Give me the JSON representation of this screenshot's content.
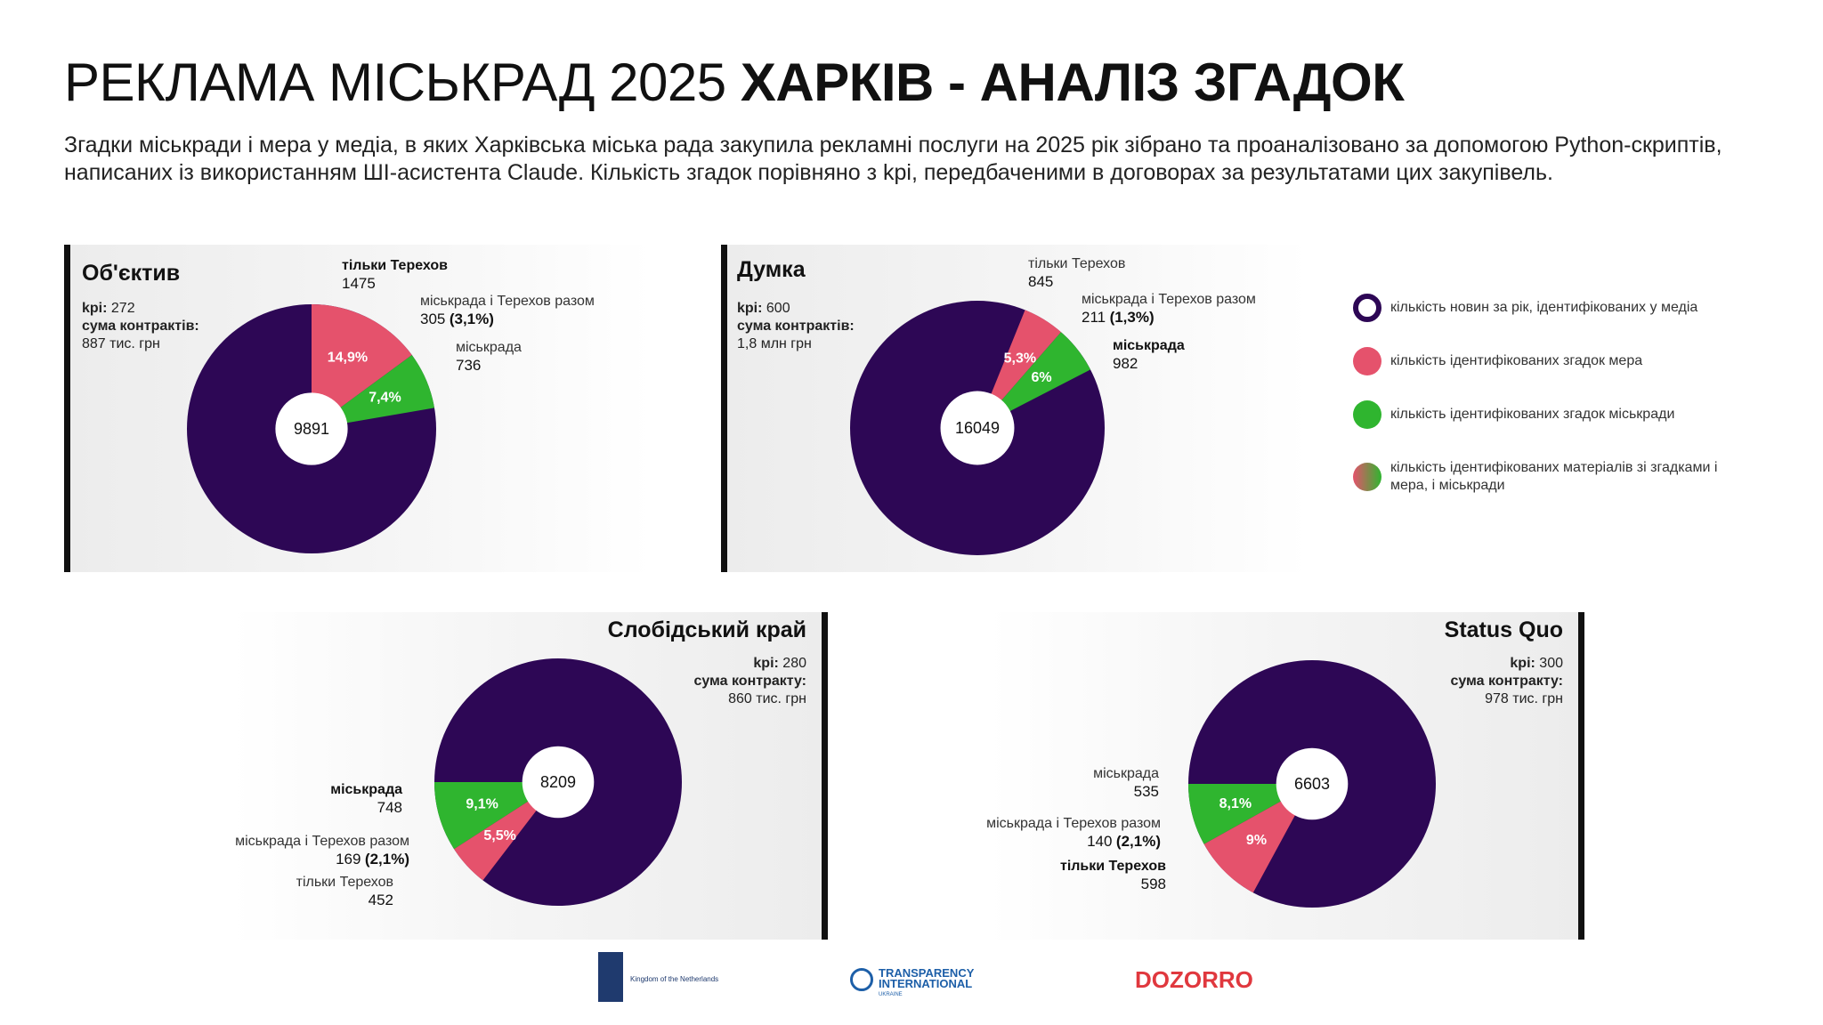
{
  "header": {
    "title_regular": "РЕКЛАМА МІСЬКРАД 2025",
    "title_bold": "ХАРКІВ - АНАЛІЗ ЗГАДОК",
    "description": "Згадки міськради і мера у медіа, в яких Харківська міська рада закупила рекламні послуги на 2025 рік зібрано та проаналізовано за допомогою Python-скриптів, написаних із використанням ШІ-асистента Claude. Кількість згадок порівняно з kpi, передбаченими в договорах за результатами цих закупівель."
  },
  "colors": {
    "total": "#2d0755",
    "mayor": "#e5526c",
    "council": "#2fb52f",
    "both_from": "#e5526c",
    "both_to": "#2fb52f"
  },
  "panels": [
    {
      "title": "Об'єктив",
      "kpi_label": "kpi:",
      "kpi_value": "272",
      "contract_label": "сума контрактів:",
      "contract_value": "887 тис. грн",
      "mayor_only_label": "тільки Терехов",
      "mayor_only_value": "1475",
      "both_label": "міськрада і Терехов разом",
      "both_value": "305",
      "both_pct": "(3,1%)",
      "council_label": "міськрада",
      "council_value": "736"
    },
    {
      "title": "Думка",
      "kpi_label": "kpi:",
      "kpi_value": "600",
      "contract_label": "сума контрактів:",
      "contract_value": "1,8 млн грн",
      "mayor_only_label": "тільки Терехов",
      "mayor_only_value": "845",
      "both_label": "міськрада і Терехов разом",
      "both_value": "211",
      "both_pct": "(1,3%)",
      "council_label": "міськрада",
      "council_value": "982"
    },
    {
      "title": "Слобідський край",
      "kpi_label": "kpi:",
      "kpi_value": "280",
      "contract_label": "сума контракту:",
      "contract_value": "860 тис. грн",
      "mayor_only_label": "тільки Терехов",
      "mayor_only_value": "452",
      "both_label": "міськрада і Терехов разом",
      "both_value": "169",
      "both_pct": "(2,1%)",
      "council_label": "міськрада",
      "council_value": "748"
    },
    {
      "title": "Status Quo",
      "kpi_label": "kpi:",
      "kpi_value": "300",
      "contract_label": "сума контракту:",
      "contract_value": "978 тис. грн",
      "mayor_only_label": "тільки Терехов",
      "mayor_only_value": "598",
      "both_label": "міськрада і Терехов разом",
      "both_value": "140",
      "both_pct": "(2,1%)",
      "council_label": "міськрада",
      "council_value": "535"
    }
  ],
  "chart_data": [
    {
      "type": "pie",
      "name": "Об'єктив",
      "total": 9891,
      "total_label": "9891",
      "slices": [
        {
          "key": "mayor",
          "pct": 14.9,
          "label": "14,9%"
        },
        {
          "key": "council",
          "pct": 7.4,
          "label": "7,4%"
        }
      ]
    },
    {
      "type": "pie",
      "name": "Думка",
      "total": 16049,
      "total_label": "16049",
      "slices": [
        {
          "key": "mayor",
          "pct": 5.3,
          "label": "5,3%"
        },
        {
          "key": "council",
          "pct": 6.0,
          "label": "6%"
        }
      ]
    },
    {
      "type": "pie",
      "name": "Слобідський край",
      "total": 8209,
      "total_label": "8209",
      "slices": [
        {
          "key": "council",
          "pct": 9.1,
          "label": "9,1%"
        },
        {
          "key": "mayor",
          "pct": 5.5,
          "label": "5,5%"
        }
      ]
    },
    {
      "type": "pie",
      "name": "Status Quo",
      "total": 6603,
      "total_label": "6603",
      "slices": [
        {
          "key": "council",
          "pct": 8.1,
          "label": "8,1%"
        },
        {
          "key": "mayor",
          "pct": 9.0,
          "label": "9%"
        }
      ]
    }
  ],
  "legend": [
    {
      "key": "total",
      "text": "кількість новин за рік, ідентифікованих у медіа"
    },
    {
      "key": "mayor",
      "text": "кількість ідентифікованих згадок мера"
    },
    {
      "key": "council",
      "text": "кількість ідентифікованих згадок міськради"
    },
    {
      "key": "both",
      "text": "кількість ідентифікованих матеріалів зі згадками і мера, і міськради"
    }
  ],
  "logos": {
    "netherlands": "Kingdom of the Netherlands",
    "ti_main": "TRANSPARENCY INTERNATIONAL",
    "ti_sub": "UKRAINE",
    "dozorro": "DOZORRO"
  }
}
